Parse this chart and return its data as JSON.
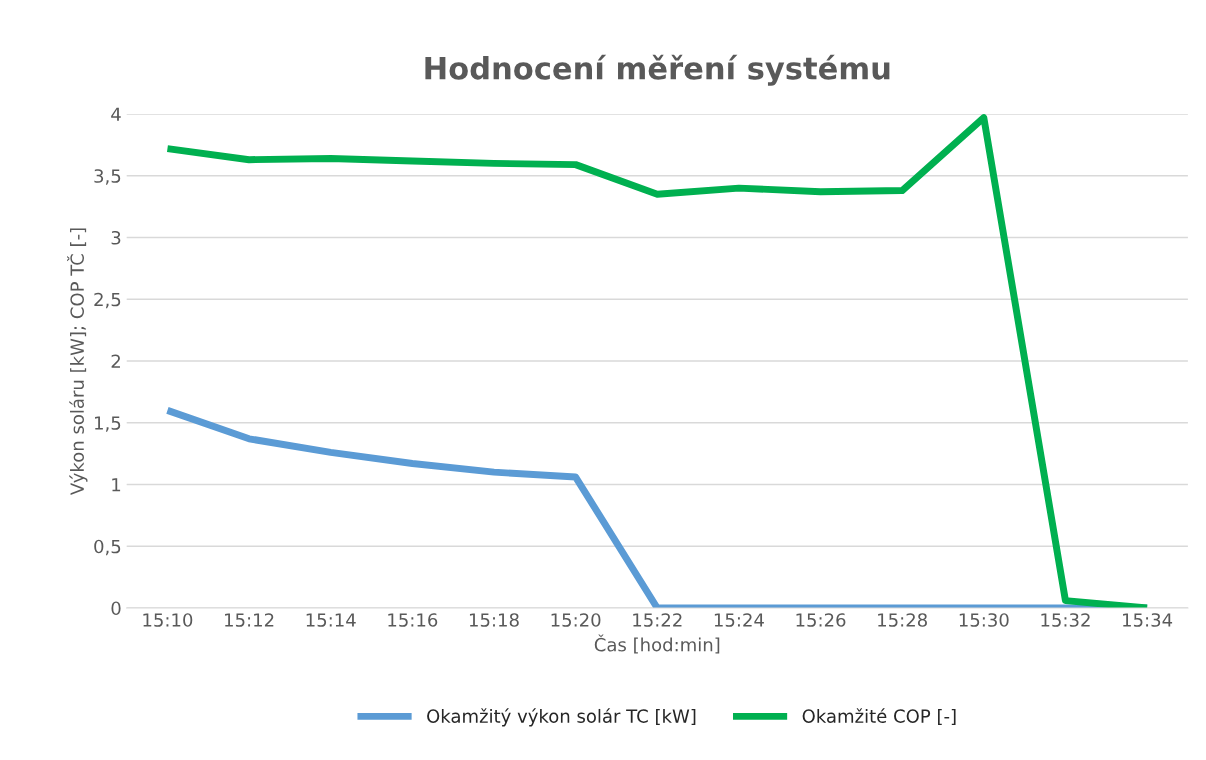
{
  "chart_data": {
    "type": "line",
    "title": "Hodnocení měření systému",
    "xlabel": "Čas [hod:min]",
    "ylabel": "Výkon soláru [kW]; COP TČ [-]",
    "categories": [
      "15:10",
      "15:12",
      "15:14",
      "15:16",
      "15:18",
      "15:20",
      "15:22",
      "15:24",
      "15:26",
      "15:28",
      "15:30",
      "15:32",
      "15:34"
    ],
    "series": [
      {
        "name": "Okamžitý výkon solár TC [kW]",
        "color": "#5b9bd5",
        "values": [
          1.6,
          1.37,
          1.26,
          1.17,
          1.1,
          1.06,
          0,
          0,
          0,
          0,
          0,
          0,
          0
        ]
      },
      {
        "name": "Okamžité COP [-]",
        "color": "#00b050",
        "values": [
          3.72,
          3.63,
          3.64,
          3.62,
          3.6,
          3.59,
          3.35,
          3.4,
          3.37,
          3.38,
          3.97,
          0.06,
          0
        ]
      }
    ],
    "ylim": [
      0,
      4
    ],
    "yticks": [
      {
        "value": 0,
        "label": "0"
      },
      {
        "value": 0.5,
        "label": "0,5"
      },
      {
        "value": 1,
        "label": "1"
      },
      {
        "value": 1.5,
        "label": "1,5"
      },
      {
        "value": 2,
        "label": "2"
      },
      {
        "value": 2.5,
        "label": "2,5"
      },
      {
        "value": 3,
        "label": "3"
      },
      {
        "value": 3.5,
        "label": "3,5"
      },
      {
        "value": 4,
        "label": "4"
      }
    ],
    "grid": "y",
    "legend": "bottom",
    "marker": "none",
    "line_style": "solid"
  }
}
